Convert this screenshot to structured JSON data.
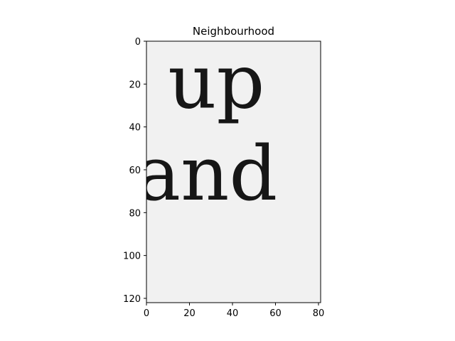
{
  "chart_data": {
    "type": "image",
    "title": "Neighbourhood",
    "image_extent": {
      "x": [
        0,
        81
      ],
      "y": [
        0,
        122
      ]
    },
    "y_axis_inverted": true,
    "x_ticks": [
      0,
      20,
      40,
      60,
      80
    ],
    "y_ticks": [
      0,
      20,
      40,
      60,
      80,
      100,
      120
    ],
    "background_color": "#f1f1f1",
    "ink_color": "#161616",
    "rendered_text": [
      {
        "text": "up",
        "x": 10,
        "y": 31
      },
      {
        "text": "and",
        "x": -5,
        "y": 74
      }
    ],
    "grid": false
  }
}
